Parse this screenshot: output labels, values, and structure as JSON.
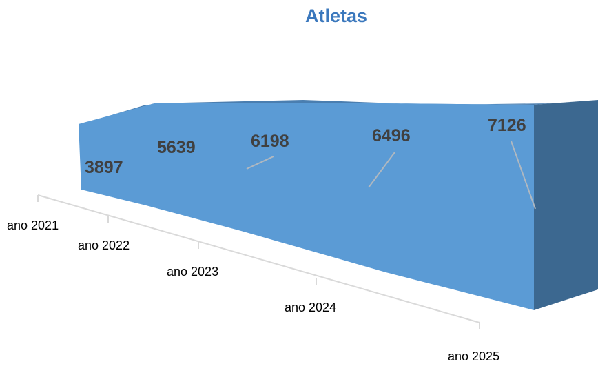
{
  "chart_data": {
    "type": "area",
    "title": "Atletas",
    "categories": [
      "ano 2021",
      "ano 2022",
      "ano 2023",
      "ano 2024",
      "ano 2025"
    ],
    "series": [
      {
        "values": [
          3897,
          5639,
          6198,
          6496,
          7126
        ]
      }
    ],
    "data_labels": [
      "3897",
      "5639",
      "6198",
      "6496",
      "7126"
    ],
    "style": "3d",
    "grid": false,
    "legend": "none",
    "colors": {
      "front": "#5b9bd5",
      "top": "#4a7eb0",
      "side": "#3c6890",
      "title": "#3b78bd",
      "label": "#404040",
      "axis": "#d9d9d9"
    }
  }
}
